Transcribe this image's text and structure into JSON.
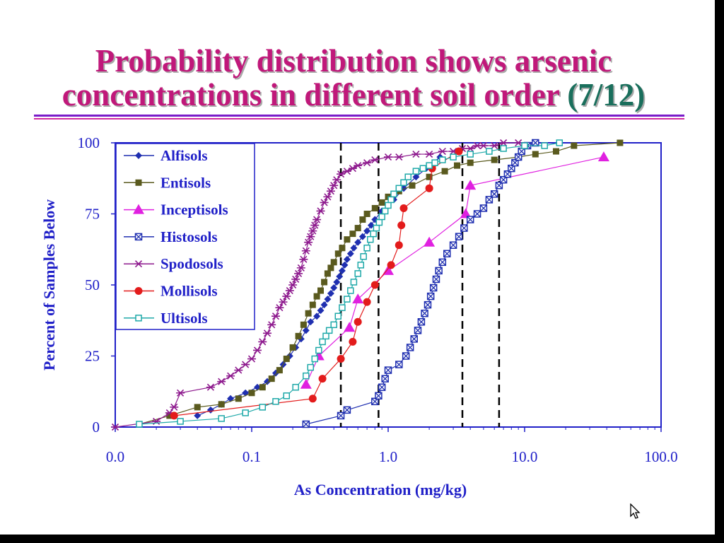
{
  "slide": {
    "title_line1": "Probability distribution shows arsenic",
    "title_line2_main": "concentrations in different soil order ",
    "title_line2_accent": "(7/12)"
  },
  "icons": {
    "cursor": "mouse-pointer-icon"
  },
  "colors": {
    "title": "#c0187a",
    "title_accent": "#1a6f5c",
    "axis": "#2020c8",
    "rule_top": "#7a1cc9",
    "rule_bottom": "#d02aa0",
    "dashed_lines": "#000000"
  },
  "chart_data": {
    "type": "scatter",
    "x_scale": "log",
    "xlim": [
      0.01,
      100
    ],
    "ylim": [
      0,
      100
    ],
    "xlabel": "As Concentration (mg/kg)",
    "ylabel": "Percent of Samples Below",
    "x_ticks": [
      0.01,
      0.1,
      1,
      10,
      100
    ],
    "x_tick_labels": [
      "0.0",
      "0.1",
      "1.0",
      "10.0",
      "100.0"
    ],
    "y_ticks": [
      0,
      25,
      50,
      75,
      100
    ],
    "y_tick_labels": [
      "0",
      "25",
      "50",
      "75",
      "100"
    ],
    "legend_position": "top-left",
    "vertical_reference_lines": [
      0.45,
      0.85,
      3.5,
      6.5
    ],
    "series": [
      {
        "name": "Alfisols",
        "color": "#1f2fb0",
        "marker": "diamond",
        "x": [
          0.04,
          0.05,
          0.06,
          0.07,
          0.09,
          0.11,
          0.13,
          0.15,
          0.17,
          0.19,
          0.21,
          0.23,
          0.25,
          0.27,
          0.3,
          0.32,
          0.34,
          0.36,
          0.38,
          0.4,
          0.42,
          0.44,
          0.46,
          0.48,
          0.5,
          0.53,
          0.56,
          0.6,
          0.65,
          0.7,
          0.75,
          0.8,
          0.9,
          1.1,
          1.3,
          1.6,
          1.9,
          2.4
        ],
        "y": [
          4,
          6,
          8,
          10,
          12,
          14,
          16,
          19,
          22,
          25,
          28,
          31,
          34,
          37,
          39,
          41,
          43,
          45,
          47,
          49,
          51,
          53,
          55,
          57,
          59,
          61,
          63,
          65,
          67,
          69,
          71,
          73,
          76,
          80,
          84,
          88,
          91,
          95
        ]
      },
      {
        "name": "Entisols",
        "color": "#5a5a1e",
        "marker": "square",
        "x": [
          0.015,
          0.025,
          0.04,
          0.06,
          0.08,
          0.1,
          0.12,
          0.14,
          0.16,
          0.18,
          0.2,
          0.22,
          0.24,
          0.26,
          0.28,
          0.3,
          0.32,
          0.34,
          0.36,
          0.38,
          0.4,
          0.43,
          0.46,
          0.5,
          0.55,
          0.6,
          0.65,
          0.7,
          0.8,
          0.9,
          1.0,
          1.2,
          1.5,
          2.0,
          2.6,
          3.2,
          4.0,
          6.0,
          9.0,
          12.0,
          17.0,
          23.0,
          50.0
        ],
        "y": [
          1,
          4,
          7,
          8,
          10,
          12,
          14,
          17,
          20,
          24,
          28,
          32,
          36,
          40,
          43,
          46,
          48,
          51,
          54,
          56,
          58,
          61,
          63,
          66,
          68,
          70,
          73,
          75,
          77,
          79,
          81,
          83,
          85,
          88,
          90,
          92,
          93,
          94,
          95,
          96,
          97,
          99,
          100
        ]
      },
      {
        "name": "Inceptisols",
        "color": "#e020e0",
        "marker": "triangle",
        "x": [
          0.25,
          0.31,
          0.52,
          0.6,
          1.0,
          2.0,
          3.7,
          4.0,
          38.0
        ],
        "y": [
          15,
          25,
          35,
          45,
          55,
          65,
          75,
          85,
          95
        ]
      },
      {
        "name": "Histosols",
        "color": "#1f2fb0",
        "marker": "boxx",
        "x": [
          0.25,
          0.45,
          0.5,
          0.8,
          0.85,
          0.9,
          0.95,
          1.0,
          1.2,
          1.35,
          1.45,
          1.55,
          1.65,
          1.75,
          1.85,
          1.95,
          2.05,
          2.15,
          2.25,
          2.35,
          2.5,
          2.7,
          3.0,
          3.3,
          3.6,
          4.0,
          4.5,
          5.0,
          5.5,
          6.0,
          6.5,
          7.0,
          7.5,
          8.0,
          8.5,
          9.0,
          9.5,
          10.5,
          12.0
        ],
        "y": [
          1,
          4,
          6,
          9,
          11,
          14,
          17,
          20,
          22,
          25,
          28,
          31,
          34,
          37,
          40,
          43,
          46,
          49,
          52,
          55,
          58,
          61,
          64,
          67,
          70,
          73,
          75,
          77,
          80,
          82,
          85,
          87,
          89,
          91,
          93,
          95,
          97,
          99,
          100
        ]
      },
      {
        "name": "Spodosols",
        "color": "#8e1a8e",
        "marker": "asterisk",
        "x": [
          0.01,
          0.02,
          0.025,
          0.027,
          0.03,
          0.05,
          0.06,
          0.07,
          0.08,
          0.09,
          0.1,
          0.11,
          0.12,
          0.13,
          0.14,
          0.15,
          0.16,
          0.17,
          0.18,
          0.19,
          0.2,
          0.21,
          0.22,
          0.23,
          0.24,
          0.25,
          0.26,
          0.27,
          0.28,
          0.29,
          0.3,
          0.32,
          0.34,
          0.36,
          0.38,
          0.4,
          0.42,
          0.45,
          0.5,
          0.55,
          0.6,
          0.7,
          0.8,
          1.0,
          1.2,
          1.6,
          2.0,
          2.5,
          3.0,
          3.5,
          4.0,
          4.5,
          5.0,
          6.0,
          7.0,
          9.0
        ],
        "y": [
          0,
          2,
          5,
          7,
          12,
          14,
          16,
          18,
          20,
          22,
          24,
          27,
          30,
          33,
          36,
          39,
          42,
          44,
          46,
          48,
          50,
          52,
          54,
          56,
          59,
          62,
          65,
          67,
          69,
          71,
          73,
          76,
          79,
          81,
          83,
          85,
          87,
          89,
          90,
          91,
          92,
          93,
          94,
          95,
          95,
          96,
          96,
          97,
          97,
          98,
          98,
          99,
          99,
          99,
          100,
          100
        ]
      },
      {
        "name": "Mollisols",
        "color": "#e31b1b",
        "marker": "circle",
        "x": [
          0.027,
          0.28,
          0.33,
          0.45,
          0.55,
          0.6,
          0.7,
          0.8,
          1.05,
          1.2,
          1.25,
          1.3,
          2.0,
          2.1,
          3.3
        ],
        "y": [
          4,
          10,
          17,
          24,
          30,
          37,
          44,
          50,
          57,
          64,
          71,
          77,
          84,
          91,
          97
        ]
      },
      {
        "name": "Ultisols",
        "color": "#1fa9a9",
        "marker": "opensquare",
        "x": [
          0.015,
          0.03,
          0.06,
          0.09,
          0.12,
          0.15,
          0.18,
          0.21,
          0.25,
          0.27,
          0.29,
          0.31,
          0.33,
          0.35,
          0.37,
          0.4,
          0.43,
          0.46,
          0.5,
          0.53,
          0.56,
          0.6,
          0.63,
          0.66,
          0.7,
          0.74,
          0.78,
          0.82,
          0.86,
          0.9,
          0.95,
          1.0,
          1.05,
          1.1,
          1.2,
          1.3,
          1.4,
          1.6,
          1.8,
          2.0,
          2.2,
          2.5,
          3.0,
          4.0,
          5.5,
          7.0,
          10.0,
          14.0,
          18.0
        ],
        "y": [
          1,
          2,
          3,
          5,
          7,
          9,
          11,
          14,
          18,
          21,
          24,
          27,
          30,
          32,
          34,
          36,
          39,
          42,
          45,
          48,
          51,
          54,
          57,
          60,
          63,
          66,
          68,
          70,
          72,
          74,
          76,
          78,
          80,
          82,
          84,
          86,
          88,
          90,
          91,
          92,
          93,
          94,
          95,
          96,
          97,
          98,
          99,
          99,
          100
        ]
      }
    ]
  }
}
